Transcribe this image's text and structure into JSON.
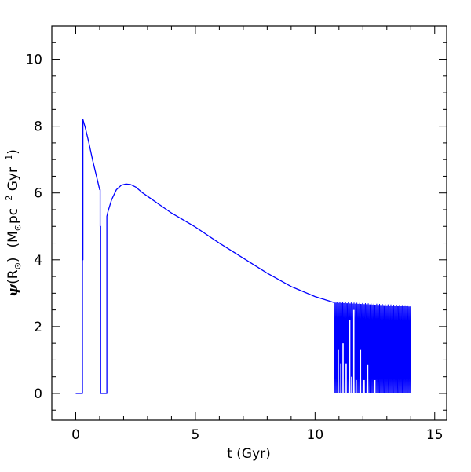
{
  "chart_data": {
    "type": "line",
    "xlabel": "t (Gyr)",
    "ylabel": {
      "psi": "ψ",
      "open1": "(R",
      "sun": "⊙",
      "close1": ")",
      "open2": "(M",
      "sun2": "⊙",
      "pc": "pc",
      "exp1": "−2",
      "gyr": " Gyr",
      "exp2": "−1",
      "close2": ")"
    },
    "xlim": [
      -1,
      15.5
    ],
    "ylim": [
      -0.8,
      11
    ],
    "x_ticks": [
      0,
      5,
      10,
      15
    ],
    "x_tick_labels": [
      "0",
      "5",
      "10",
      "15"
    ],
    "y_ticks": [
      0,
      2,
      4,
      6,
      8,
      10
    ],
    "y_tick_labels": [
      "0",
      "2",
      "4",
      "6",
      "8",
      "10"
    ],
    "x_minor_step": 1,
    "y_minor_step": 0.5,
    "grid": false,
    "line_color": "#0000ff",
    "series": [
      {
        "x": [
          0.0,
          0.28,
          0.28,
          0.3,
          0.3,
          0.4,
          0.55,
          0.7,
          0.85,
          1.0,
          1.02,
          1.02,
          1.04,
          1.04,
          1.3,
          1.3,
          1.35,
          1.5,
          1.7,
          1.9,
          2.1,
          2.3,
          2.5,
          2.8,
          3.2,
          4.0,
          5.0,
          6.0,
          7.0,
          8.0,
          9.0,
          10.0,
          10.8
        ],
        "y": [
          0.0,
          0.0,
          4.0,
          4.0,
          8.2,
          7.95,
          7.5,
          7.0,
          6.55,
          6.1,
          6.1,
          5.0,
          5.0,
          0.0,
          0.0,
          5.3,
          5.45,
          5.8,
          6.1,
          6.23,
          6.27,
          6.25,
          6.18,
          6.0,
          5.8,
          5.4,
          4.98,
          4.5,
          4.05,
          3.6,
          3.2,
          2.9,
          2.72
        ]
      }
    ],
    "oscillation": {
      "x_start": 10.8,
      "x_end": 14.0,
      "top_start": 2.72,
      "top_end": 2.6,
      "bottom": 0.0,
      "spikes": [
        {
          "x": 10.97,
          "y": 1.3
        },
        {
          "x": 11.08,
          "y": 0.9
        },
        {
          "x": 11.17,
          "y": 1.5
        },
        {
          "x": 11.3,
          "y": 0.9
        },
        {
          "x": 11.45,
          "y": 2.2
        },
        {
          "x": 11.53,
          "y": 0.5
        },
        {
          "x": 11.62,
          "y": 2.5
        },
        {
          "x": 11.72,
          "y": 0.4
        },
        {
          "x": 11.9,
          "y": 1.3
        },
        {
          "x": 12.05,
          "y": 0.4
        },
        {
          "x": 12.2,
          "y": 0.85
        },
        {
          "x": 12.5,
          "y": 0.4
        }
      ]
    }
  }
}
